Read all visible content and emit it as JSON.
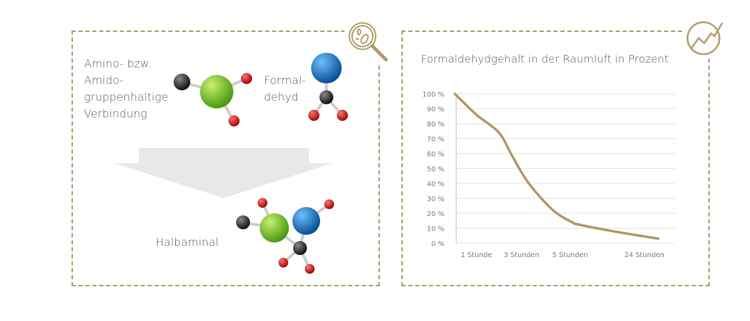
{
  "left_panel": {
    "reactant1_label": [
      "Amino- bzw.",
      "Amido-",
      "gruppenhaltige",
      "Verbindung"
    ],
    "reactant2_label": [
      "Formal-",
      "dehyd"
    ],
    "product_label": "Halbaminal",
    "icon": "magnifier-bacteria-icon"
  },
  "right_panel": {
    "icon": "rising-chart-circle-icon"
  },
  "colors": {
    "frame": "#a49a6c",
    "line": "#b39560",
    "atom_green": "#7cc41f",
    "atom_blue": "#1a78c2",
    "atom_red": "#d01818",
    "atom_black": "#2a2a2a",
    "arrow": "#e6e6e6"
  },
  "chart_data": {
    "type": "line",
    "title": "Formaldehydgehalt in der Raumluft in Prozent",
    "xlabel": "",
    "ylabel": "",
    "ylim": [
      0,
      100
    ],
    "yticks": [
      "0 %",
      "10 %",
      "20 %",
      "30 %",
      "40 %",
      "50 %",
      "60 %",
      "70 %",
      "80 %",
      "90 %",
      "100 %"
    ],
    "xticks": [
      {
        "hours": 1,
        "label": "1 Stunde"
      },
      {
        "hours": 3,
        "label": "3 Stunden"
      },
      {
        "hours": 5,
        "label": "5 Stunden"
      },
      {
        "hours": 24,
        "label": "24 Stunden"
      }
    ],
    "grid": true,
    "series": [
      {
        "points": [
          {
            "x": 0,
            "y": 100
          },
          {
            "x": 1,
            "y": 86
          },
          {
            "x": 2,
            "y": 74
          },
          {
            "x": 2.6,
            "y": 58
          },
          {
            "x": 3.3,
            "y": 40
          },
          {
            "x": 4.3,
            "y": 22
          },
          {
            "x": 5.5,
            "y": 14
          },
          {
            "x": 7.1,
            "y": 12.5
          },
          {
            "x": 16,
            "y": 8
          },
          {
            "x": 27.5,
            "y": 3
          }
        ]
      }
    ]
  }
}
